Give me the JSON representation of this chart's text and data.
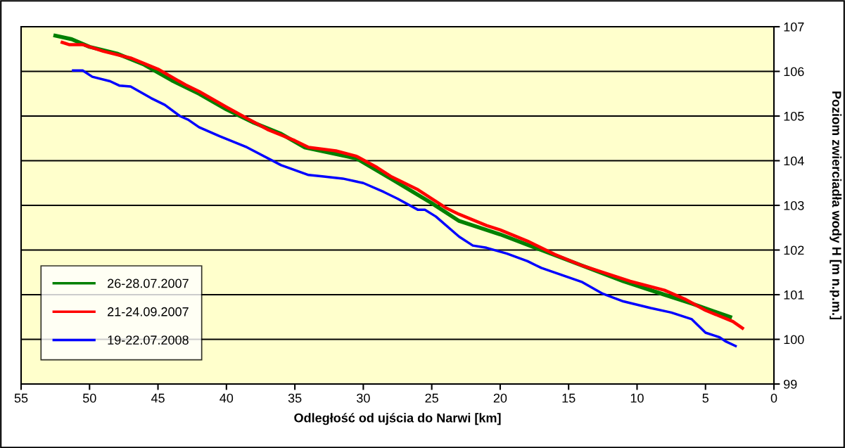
{
  "chart_data": {
    "type": "line",
    "xlabel": "Odległość od ujścia do Narwi [km]",
    "ylabel": "Poziom zwierciadła wody H [m n.p.m.]",
    "xlim": [
      55,
      0
    ],
    "xticks": [
      55,
      50,
      45,
      40,
      35,
      30,
      25,
      20,
      15,
      10,
      5,
      0
    ],
    "ylim": [
      99,
      107
    ],
    "yticks": [
      99,
      100,
      101,
      102,
      103,
      104,
      105,
      106,
      107
    ],
    "grid": "y",
    "legend": "bottom left",
    "marker": "none",
    "line_style": "solid",
    "series": [
      {
        "name": "26-28.07.2007",
        "color": "#008000",
        "x": [
          52.5,
          51.3,
          50,
          48,
          46,
          44,
          42,
          40,
          38,
          36,
          34.3,
          32,
          30.5,
          28,
          25,
          23,
          20,
          17,
          14,
          11,
          8,
          6,
          3.2
        ],
        "values": [
          106.8,
          106.72,
          106.55,
          106.4,
          106.15,
          105.8,
          105.5,
          105.15,
          104.85,
          104.6,
          104.3,
          104.15,
          104.05,
          103.6,
          103.05,
          102.65,
          102.35,
          102.0,
          101.65,
          101.3,
          101.0,
          100.8,
          100.5
        ]
      },
      {
        "name": "21-24.09.2007",
        "color": "#ff0000",
        "x": [
          52,
          51.5,
          50.5,
          49,
          47,
          45,
          43,
          42,
          40,
          38.5,
          37,
          35,
          34,
          32,
          30.5,
          29,
          28,
          26,
          24,
          23,
          21,
          20,
          18,
          16,
          14,
          12,
          10.5,
          8,
          6.5,
          5,
          3,
          2.3
        ],
        "values": [
          106.65,
          106.6,
          106.6,
          106.45,
          106.3,
          106.05,
          105.7,
          105.55,
          105.2,
          104.95,
          104.7,
          104.45,
          104.3,
          104.22,
          104.1,
          103.85,
          103.65,
          103.35,
          102.95,
          102.8,
          102.55,
          102.45,
          102.2,
          101.9,
          101.65,
          101.45,
          101.3,
          101.1,
          100.9,
          100.65,
          100.4,
          100.25
        ]
      },
      {
        "name": "19-22.07.2008",
        "color": "#0000ff",
        "x": [
          51.2,
          50.5,
          49.8,
          48.5,
          47.8,
          47,
          45.5,
          44.5,
          43.4,
          42.8,
          42,
          40.5,
          38.5,
          36,
          34,
          33,
          31.5,
          30,
          28.5,
          27.5,
          26,
          25.5,
          24.7,
          23,
          22,
          21,
          19.5,
          18,
          17,
          14,
          12.5,
          11,
          9,
          7.5,
          6,
          5,
          4,
          3.5,
          2.8
        ],
        "values": [
          106.02,
          106.02,
          105.88,
          105.78,
          105.68,
          105.66,
          105.4,
          105.25,
          105.0,
          104.92,
          104.75,
          104.55,
          104.3,
          103.9,
          103.68,
          103.65,
          103.6,
          103.5,
          103.3,
          103.15,
          102.9,
          102.9,
          102.75,
          102.3,
          102.1,
          102.05,
          101.92,
          101.75,
          101.6,
          101.28,
          101.02,
          100.85,
          100.7,
          100.6,
          100.45,
          100.15,
          100.05,
          99.95,
          99.85
        ]
      }
    ]
  }
}
